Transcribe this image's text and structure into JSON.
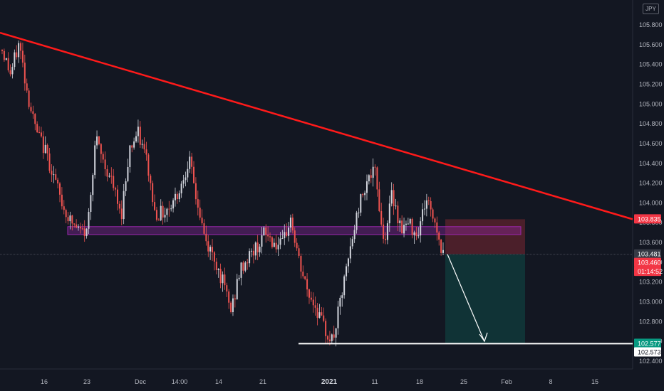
{
  "currency": "JPY",
  "chart_data": {
    "type": "candlestick",
    "x_ticks": [
      {
        "label": "16",
        "bold": false
      },
      {
        "label": "23",
        "bold": false
      },
      {
        "label": "Dec",
        "bold": false
      },
      {
        "label": "14:00",
        "bold": false
      },
      {
        "label": "14",
        "bold": false
      },
      {
        "label": "21",
        "bold": false
      },
      {
        "label": "2021",
        "bold": true
      },
      {
        "label": "11",
        "bold": false
      },
      {
        "label": "18",
        "bold": false
      },
      {
        "label": "25",
        "bold": false
      },
      {
        "label": "Feb",
        "bold": false
      },
      {
        "label": "8",
        "bold": false
      },
      {
        "label": "15",
        "bold": false
      }
    ],
    "y_ticks": [
      "105.800",
      "105.600",
      "105.400",
      "105.200",
      "105.000",
      "104.800",
      "104.600",
      "104.400",
      "104.200",
      "104.000",
      "103.800",
      "103.600",
      "103.400",
      "103.200",
      "103.000",
      "102.800",
      "102.600",
      "102.400"
    ],
    "ylim": [
      102.35,
      106.0
    ],
    "price_path": [
      105.55,
      105.3,
      105.62,
      105.1,
      104.72,
      104.55,
      104.3,
      104.0,
      103.82,
      103.72,
      103.7,
      104.65,
      104.4,
      104.2,
      103.85,
      104.55,
      104.7,
      104.45,
      103.9,
      103.9,
      104.0,
      104.15,
      104.45,
      104.0,
      103.6,
      103.45,
      103.2,
      102.9,
      103.3,
      103.45,
      103.55,
      103.7,
      103.6,
      103.55,
      103.85,
      103.4,
      103.1,
      102.95,
      102.72,
      102.6,
      103.05,
      103.5,
      103.95,
      104.25,
      104.3,
      103.6,
      104.1,
      103.75,
      103.78,
      103.7,
      104.05,
      103.82,
      103.46
    ],
    "trendline": {
      "start_price": 105.72,
      "end_price": 103.835,
      "color": "#ff1a1a"
    },
    "support_zone": {
      "low": 103.68,
      "high": 103.76,
      "color": "#9c27b0"
    },
    "support_line": {
      "price": 102.577,
      "color": "#ffffff"
    },
    "position": {
      "entry": 103.481,
      "stop": 103.835,
      "target": 102.577
    },
    "current_price": 103.481,
    "labels": [
      {
        "text": "103.835",
        "price": 103.835,
        "bg": "#f23645",
        "fg": "#ffffff"
      },
      {
        "text": "103.481",
        "price": 103.481,
        "bg": "#363a45",
        "fg": "#ffffff"
      },
      {
        "text": "103.460",
        "price": 103.395,
        "bg": "#f23645",
        "fg": "#ffffff"
      },
      {
        "text": "01:14:52",
        "price": 103.305,
        "bg": "#f23645",
        "fg": "#ffffff"
      },
      {
        "text": "102.577",
        "price": 102.577,
        "bg": "#089981",
        "fg": "#ffffff"
      },
      {
        "text": "102.573",
        "price": 102.49,
        "bg": "#ffffff",
        "fg": "#131722"
      }
    ]
  }
}
